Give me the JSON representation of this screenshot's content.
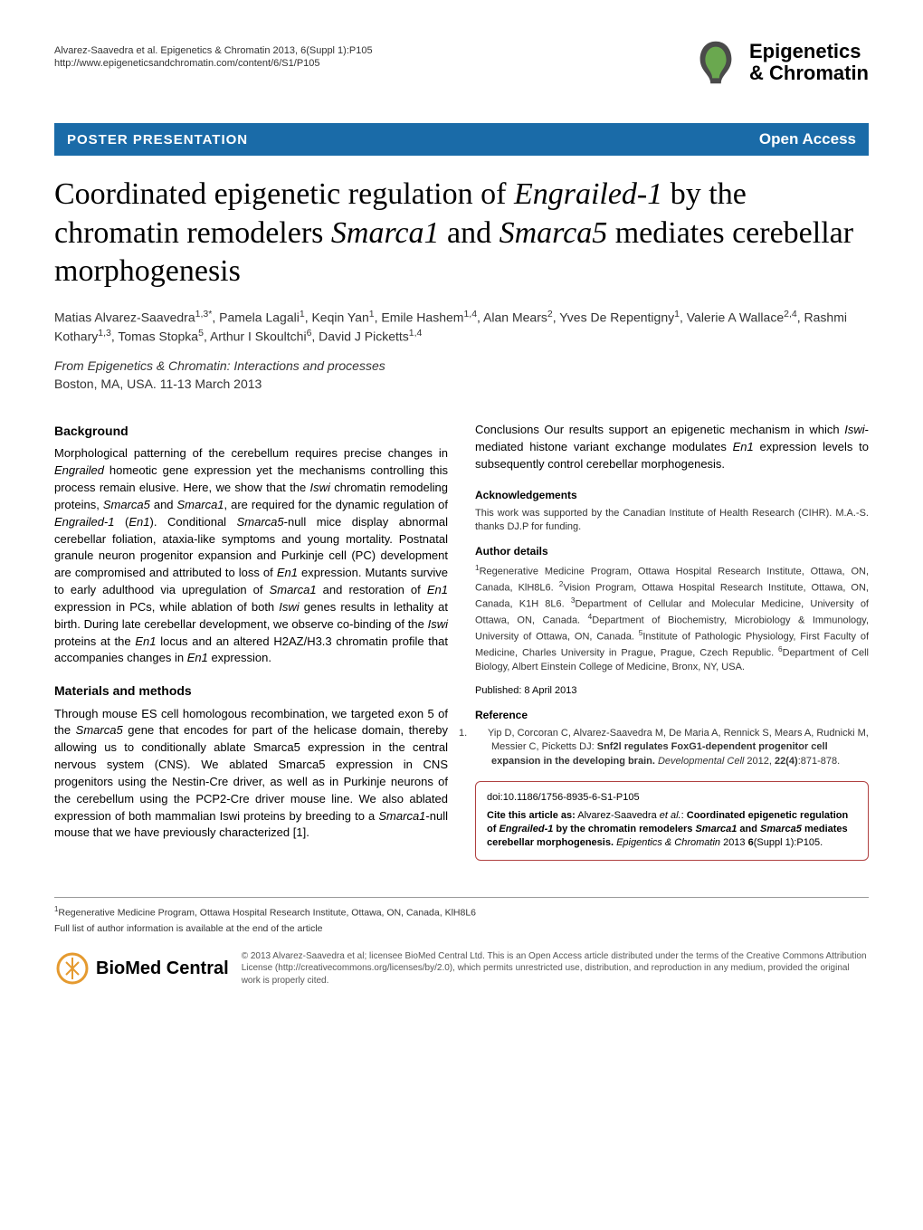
{
  "header": {
    "citation": "Alvarez-Saavedra et al. Epigenetics & Chromatin 2013, 6(Suppl 1):P105",
    "url": "http://www.epigeneticsandchromatin.com/content/6/S1/P105",
    "journal_line1": "Epigenetics",
    "journal_line2": "& Chromatin",
    "logo_colors": {
      "outer": "#4a4a4a",
      "inner": "#6aa84f"
    }
  },
  "banner": {
    "left": "POSTER PRESENTATION",
    "right": "Open Access",
    "bg_color": "#1a6ba8",
    "text_color": "#ffffff"
  },
  "title_html": "Coordinated epigenetic regulation of <em>Engrailed-1</em> by the chromatin remodelers <em>Smarca1</em> and <em>Smarca5</em> mediates cerebellar morphogenesis",
  "authors_html": "Matias Alvarez-Saavedra<sup>1,3*</sup>, Pamela Lagali<sup>1</sup>, Keqin Yan<sup>1</sup>, Emile Hashem<sup>1,4</sup>, Alan Mears<sup>2</sup>, Yves De Repentigny<sup>1</sup>, Valerie A Wallace<sup>2,4</sup>, Rashmi Kothary<sup>1,3</sup>, Tomas Stopka<sup>5</sup>, Arthur I Skoultchi<sup>6</sup>, David J Picketts<sup>1,4</sup>",
  "from": {
    "label": "From",
    "conference": "Epigenetics & Chromatin: Interactions and processes",
    "location": "Boston, MA, USA. 11-13 March 2013"
  },
  "sections": {
    "background": {
      "heading": "Background",
      "text_html": "Morphological patterning of the cerebellum requires precise changes in <em>Engrailed</em> homeotic gene expression yet the mechanisms controlling this process remain elusive. Here, we show that the <em>Iswi</em> chromatin remodeling proteins, <em>Smarca5</em> and <em>Smarca1</em>, are required for the dynamic regulation of <em>Engrailed-1</em> (<em>En1</em>). Conditional <em>Smarca5</em>-null mice display abnormal cerebellar foliation, ataxia-like symptoms and young mortality. Postnatal granule neuron progenitor expansion and Purkinje cell (PC) development are compromised and attributed to loss of <em>En1</em> expression. Mutants survive to early adulthood via upregulation of <em>Smarca1</em> and restoration of <em>En1</em> expression in PCs, while ablation of both <em>Iswi</em> genes results in lethality at birth. During late cerebellar development, we observe co-binding of the <em>Iswi</em> proteins at the <em>En1</em> locus and an altered H2AZ/H3.3 chromatin profile that accompanies changes in <em>En1</em> expression."
    },
    "methods": {
      "heading": "Materials and methods",
      "text_html": "Through mouse ES cell homologous recombination, we targeted exon 5 of the <em>Smarca5</em> gene that encodes for part of the helicase domain, thereby allowing us to conditionally ablate Smarca5 expression in the central nervous system (CNS). We ablated Smarca5 expression in CNS progenitors using the Nestin-Cre driver, as well as in Purkinje neurons of the cerebellum using the PCP2-Cre driver mouse line. We also ablated expression of both mammalian Iswi proteins by breeding to a <em>Smarca1</em>-null mouse that we have previously characterized [1]."
    },
    "conclusions": {
      "text_html": "Conclusions Our results support an epigenetic mechanism in which <em>Iswi</em>-mediated histone variant exchange modulates <em>En1</em> expression levels to subsequently control cerebellar morphogenesis."
    }
  },
  "acknowledgements": {
    "heading": "Acknowledgements",
    "text": "This work was supported by the Canadian Institute of Health Research (CIHR). M.A.-S. thanks DJ.P for funding."
  },
  "author_details": {
    "heading": "Author details",
    "text_html": "<sup>1</sup>Regenerative Medicine Program, Ottawa Hospital Research Institute, Ottawa, ON, Canada, KlH8L6. <sup>2</sup>Vision Program, Ottawa Hospital Research Institute, Ottawa, ON, Canada, K1H 8L6. <sup>3</sup>Department of Cellular and Molecular Medicine, University of Ottawa, ON, Canada. <sup>4</sup>Department of Biochemistry, Microbiology & Immunology, University of Ottawa, ON, Canada. <sup>5</sup>Institute of Pathologic Physiology, First Faculty of Medicine, Charles University in Prague, Prague, Czech Republic. <sup>6</sup>Department of Cell Biology, Albert Einstein College of Medicine, Bronx, NY, USA."
  },
  "published": {
    "label": "Published: 8 April 2013"
  },
  "reference": {
    "heading": "Reference",
    "items": [
      {
        "num": "1.",
        "text_html": "Yip D, Corcoran C, Alvarez-Saavedra M, De Maria A, Rennick S, Mears A, Rudnicki M, Messier C, Picketts DJ: <b>Snf2l regulates FoxG1-dependent progenitor cell expansion in the developing brain.</b> <em>Developmental Cell</em> 2012, <b>22(4)</b>:871-878."
      }
    ]
  },
  "cite_box": {
    "doi": "doi:10.1186/1756-8935-6-S1-P105",
    "text_html": "<b>Cite this article as:</b> Alvarez-Saavedra <em>et al.</em>: <b>Coordinated epigenetic regulation of <em>Engrailed-1</em> by the chromatin remodelers <em>Smarca1</em> and <em>Smarca5</em> mediates cerebellar morphogenesis.</b> <em>Epigentics & Chromatin</em> 2013 <b>6</b>(Suppl 1):P105.",
    "border_color": "#b04040"
  },
  "footer": {
    "affil_html": "<sup>1</sup>Regenerative Medicine Program, Ottawa Hospital Research Institute, Ottawa, ON, Canada, KlH8L6",
    "note": "Full list of author information is available at the end of the article",
    "biomed_label": "BioMed Central",
    "biomed_color": "#e59a2f",
    "license": "© 2013 Alvarez-Saavedra et al; licensee BioMed Central Ltd. This is an Open Access article distributed under the terms of the Creative Commons Attribution License (http://creativecommons.org/licenses/by/2.0), which permits unrestricted use, distribution, and reproduction in any medium, provided the original work is properly cited."
  }
}
